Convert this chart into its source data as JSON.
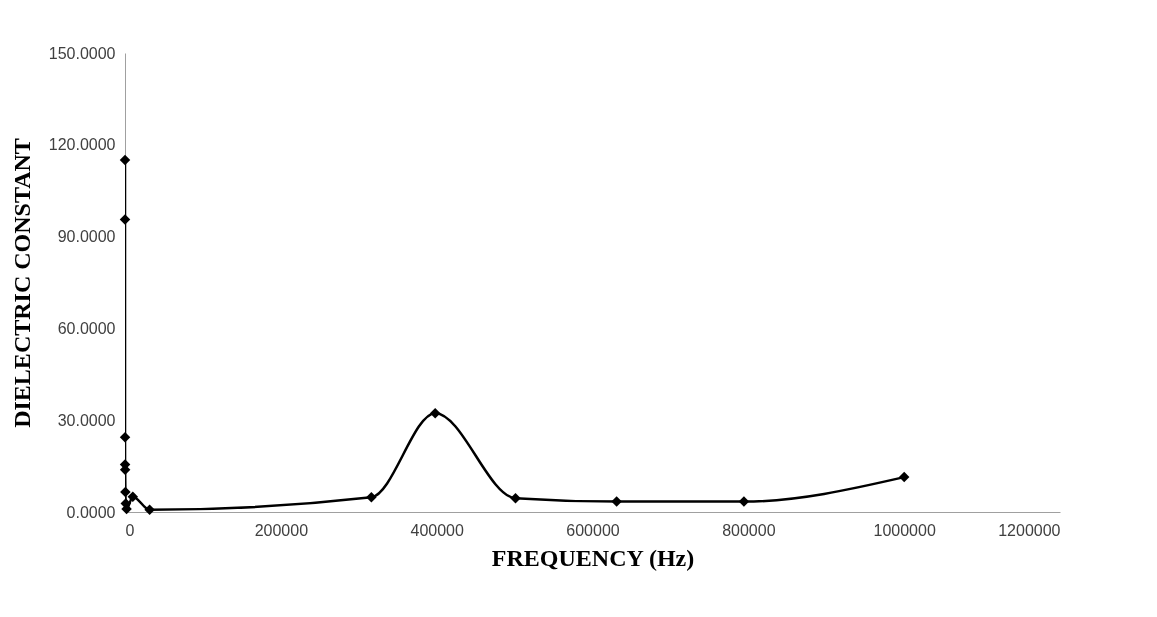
{
  "chart_data": {
    "type": "line",
    "xlabel": "FREQUENCY  (Hz)",
    "ylabel": "DIELECTRIC CONSTANT",
    "x": [
      10,
      20,
      50,
      100,
      200,
      500,
      1000,
      2000,
      10000,
      31623,
      316228,
      398107,
      501187,
      630957,
      794328,
      1000000
    ],
    "series": [
      {
        "color": "#000000",
        "values": [
          115,
          95.6,
          24.4,
          15.5,
          13.8,
          6.5,
          2.8,
          1.0,
          5.0,
          0.7,
          4.8,
          32.3,
          4.5,
          3.4,
          3.4,
          11.4
        ]
      }
    ],
    "xlim": [
      0,
      1200000
    ],
    "xticks": [
      0,
      200000,
      400000,
      600000,
      800000,
      1000000,
      1200000
    ],
    "ylim": [
      0,
      150
    ],
    "yticks": [
      {
        "value": 0,
        "label": "0.0000"
      },
      {
        "value": 30,
        "label": "30.0000"
      },
      {
        "value": 60,
        "label": "60.0000"
      },
      {
        "value": 90,
        "label": "90.0000"
      },
      {
        "value": 120,
        "label": "120.0000"
      },
      {
        "value": 150,
        "label": "150.0000"
      }
    ],
    "grid": false,
    "marker": "diamond",
    "line_style": "solid"
  }
}
